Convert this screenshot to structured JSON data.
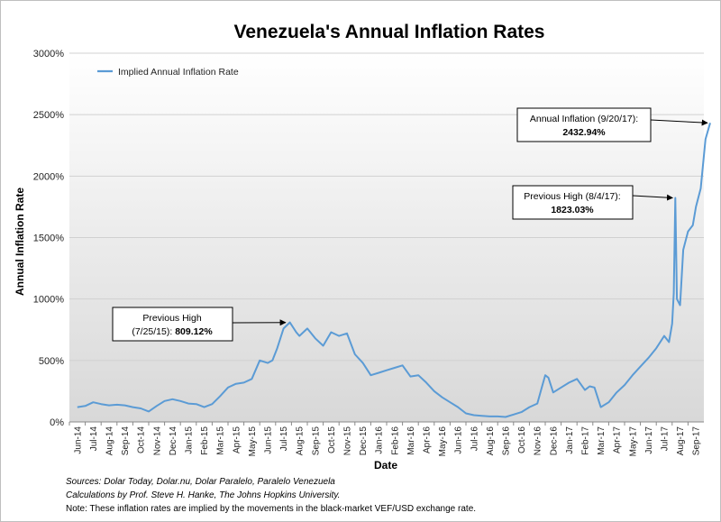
{
  "chart_data": {
    "type": "line",
    "title": "Venezuela's Annual Inflation Rates",
    "xlabel": "Date",
    "ylabel": "Annual Inflation Rate",
    "ylim": [
      0,
      3000
    ],
    "y_ticks": [
      "0%",
      "500%",
      "1000%",
      "1500%",
      "2000%",
      "2500%",
      "3000%"
    ],
    "grid": true,
    "legend": {
      "position": "top-left",
      "entries": [
        "Implied Annual Inflation Rate"
      ]
    },
    "x_labels": [
      "Jun-14",
      "Jul-14",
      "Aug-14",
      "Sep-14",
      "Oct-14",
      "Nov-14",
      "Dec-14",
      "Jan-15",
      "Feb-15",
      "Mar-15",
      "Apr-15",
      "May-15",
      "Jun-15",
      "Jul-15",
      "Aug-15",
      "Sep-15",
      "Oct-15",
      "Nov-15",
      "Dec-15",
      "Jan-16",
      "Feb-16",
      "Mar-16",
      "Apr-16",
      "May-16",
      "Jun-16",
      "Jul-16",
      "Aug-16",
      "Sep-16",
      "Oct-16",
      "Nov-16",
      "Dec-16",
      "Jan-17",
      "Feb-17",
      "Mar-17",
      "Apr-17",
      "May-17",
      "Jun-17",
      "Jul-17",
      "Aug-17",
      "Sep-17"
    ],
    "series": [
      {
        "name": "Implied Annual Inflation Rate",
        "color": "#5b9bd5",
        "x": [
          0,
          0.5,
          1,
          1.5,
          2,
          2.5,
          3,
          3.5,
          4,
          4.5,
          5,
          5.5,
          6,
          6.5,
          7,
          7.5,
          8,
          8.5,
          9,
          9.5,
          10,
          10.5,
          11,
          11.5,
          12,
          12.3,
          12.6,
          13,
          13.4,
          13.8,
          14,
          14.5,
          15,
          15.5,
          16,
          16.5,
          17,
          17.5,
          18,
          18.5,
          19,
          19.5,
          20,
          20.5,
          21,
          21.5,
          22,
          22.5,
          23,
          23.5,
          24,
          24.5,
          25,
          25.5,
          26,
          26.5,
          27,
          27.5,
          28,
          28.5,
          29,
          29.3,
          29.5,
          29.7,
          30,
          30.5,
          31,
          31.5,
          32,
          32.3,
          32.6,
          33,
          33.5,
          34,
          34.5,
          35,
          35.5,
          36,
          36.5,
          37,
          37.3,
          37.5,
          37.6,
          37.7,
          37.8,
          38,
          38.2,
          38.5,
          38.8,
          39,
          39.3,
          39.6,
          39.9
        ],
        "values": [
          120,
          130,
          160,
          145,
          135,
          140,
          135,
          120,
          110,
          85,
          130,
          170,
          185,
          170,
          150,
          145,
          120,
          145,
          210,
          280,
          310,
          320,
          350,
          500,
          480,
          500,
          600,
          760,
          810,
          730,
          700,
          760,
          680,
          620,
          730,
          700,
          720,
          550,
          480,
          380,
          400,
          420,
          440,
          460,
          370,
          380,
          320,
          250,
          200,
          160,
          120,
          70,
          55,
          50,
          45,
          45,
          40,
          60,
          80,
          120,
          150,
          290,
          380,
          360,
          240,
          280,
          320,
          350,
          260,
          290,
          280,
          120,
          160,
          240,
          300,
          380,
          450,
          520,
          600,
          700,
          650,
          800,
          1050,
          1823,
          1000,
          950,
          1400,
          1550,
          1600,
          1750,
          1900,
          2300,
          2433
        ]
      }
    ],
    "annotations": [
      {
        "line1": "Previous High",
        "line2_prefix": "(7/25/15): ",
        "value": "809.12%",
        "at_x": 13.3,
        "at_y": 809.12
      },
      {
        "line1": "Previous High (8/4/17):",
        "value": "1823.03%",
        "at_x": 37.7,
        "at_y": 1823.03
      },
      {
        "line1": "Annual Inflation (9/20/17):",
        "value": "2432.94%",
        "at_x": 39.9,
        "at_y": 2432.94
      }
    ],
    "sources": {
      "line1": "Sources: Dolar Today, Dolar.nu, Dolar Paralelo, Paralelo Venezuela",
      "line2": "Calculations by Prof. Steve H. Hanke, The Johns Hopkins University.",
      "line3": "Note: These inflation rates are implied by the movements in the black-market VEF/USD exchange rate."
    }
  }
}
